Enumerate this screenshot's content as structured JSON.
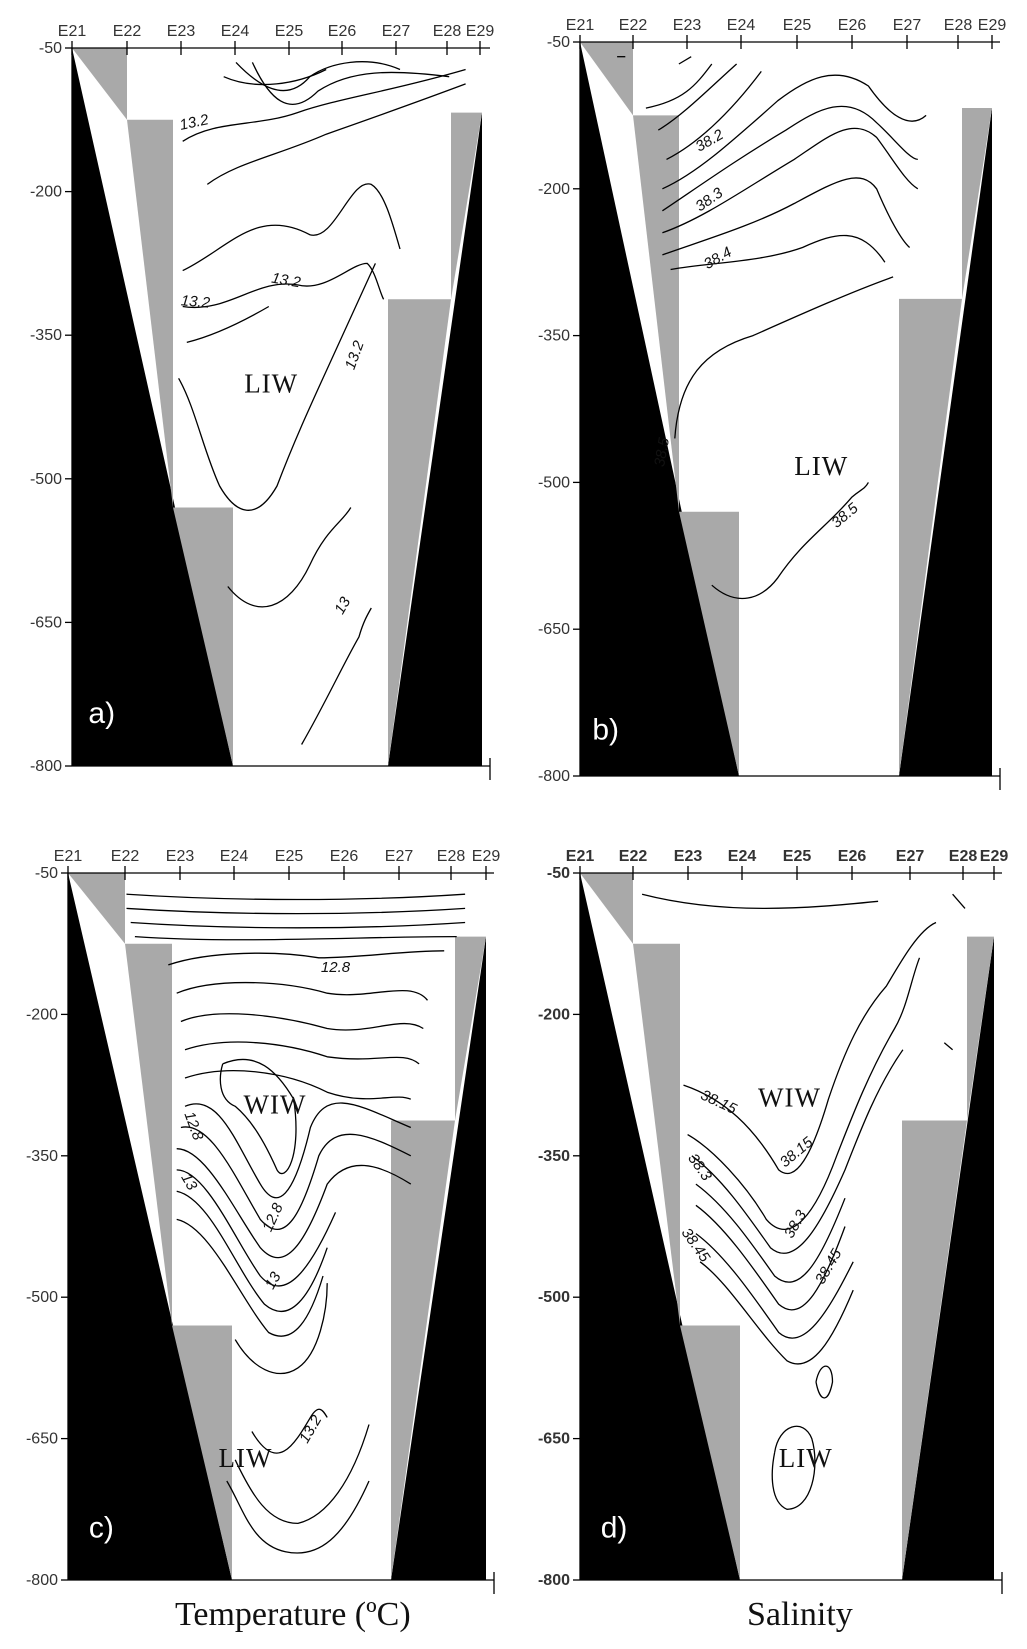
{
  "chart_data": [
    {
      "type": "contour",
      "panel": "a)",
      "stations": [
        "E21",
        "E22",
        "E23",
        "E24",
        "E25",
        "E26",
        "E27",
        "E28",
        "E29"
      ],
      "y_ticks": [
        -50,
        -200,
        -350,
        -500,
        -650,
        -800
      ],
      "ylim": [
        -800,
        -50
      ],
      "water_masses": [
        "LIW"
      ],
      "contour_labels": [
        "13.2",
        "13.2",
        "13.2",
        "13.2",
        "13"
      ]
    },
    {
      "type": "contour",
      "panel": "b)",
      "stations": [
        "E21",
        "E22",
        "E23",
        "E24",
        "E25",
        "E26",
        "E27",
        "E28",
        "E29"
      ],
      "y_ticks": [
        -50,
        -200,
        -350,
        -500,
        -650,
        -800
      ],
      "ylim": [
        -800,
        -50
      ],
      "water_masses": [
        "LIW"
      ],
      "contour_labels": [
        "38.2",
        "38.3",
        "38.4",
        "38.5",
        "38.5"
      ]
    },
    {
      "type": "contour",
      "panel": "c)",
      "stations": [
        "E21",
        "E22",
        "E23",
        "E24",
        "E25",
        "E26",
        "E27",
        "E28",
        "E29"
      ],
      "y_ticks": [
        -50,
        -200,
        -350,
        -500,
        -650,
        -800
      ],
      "ylim": [
        -800,
        -50
      ],
      "water_masses": [
        "WIW",
        "LIW"
      ],
      "contour_labels": [
        "12.8",
        "12.8",
        "13",
        "12.8",
        "13",
        "13.2"
      ]
    },
    {
      "type": "contour",
      "panel": "d)",
      "stations": [
        "E21",
        "E22",
        "E23",
        "E24",
        "E25",
        "E26",
        "E27",
        "E28",
        "E29"
      ],
      "y_ticks": [
        -50,
        -200,
        -350,
        -500,
        -650,
        -800
      ],
      "ylim": [
        -800,
        -50
      ],
      "water_masses": [
        "WIW",
        "LIW"
      ],
      "contour_labels": [
        "38.15",
        "38.15",
        "38.3",
        "38.3",
        "38.45",
        "38.45"
      ]
    }
  ],
  "captions": {
    "left": "Temperature (ºC)",
    "right": "Salinity"
  },
  "colors": {
    "land": "#000000",
    "slope_fill": "#a9a9a9",
    "contour": "#000000",
    "water": "#ffffff"
  }
}
